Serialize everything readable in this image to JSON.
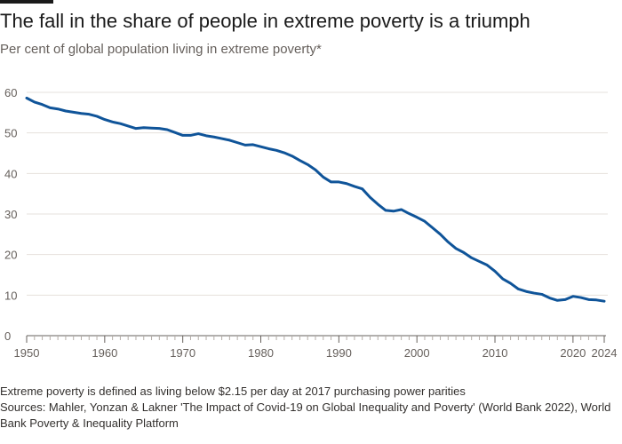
{
  "header": {
    "title": "The fall in the share of people in extreme poverty is a triumph",
    "subtitle": "Per cent of global population living in extreme poverty*"
  },
  "footer": {
    "note": "Extreme poverty is defined as living below $2.15 per day at 2017 purchasing power parities",
    "sources": "Sources: Mahler, Yonzan & Lakner 'The Impact of Covid-19 on Global Inequality and Poverty' (World Bank 2022), World Bank Poverty & Inequality Platform"
  },
  "colors": {
    "line": "#0f5499",
    "grid": "#e6e1dc",
    "axis": "#66605c",
    "text": "#33302e"
  },
  "chart_data": {
    "type": "line",
    "title": "The fall in the share of people in extreme poverty is a triumph",
    "subtitle": "Per cent of global population living in extreme poverty*",
    "xlabel": "",
    "ylabel": "",
    "xlim": [
      1950,
      2024
    ],
    "ylim": [
      0,
      60
    ],
    "yticks": [
      0,
      10,
      20,
      30,
      40,
      50,
      60
    ],
    "xticks": [
      1950,
      1960,
      1970,
      1980,
      1990,
      2000,
      2010,
      2020,
      2024
    ],
    "grid": true,
    "legend": "none",
    "series": [
      {
        "x": [
          1950,
          1951,
          1952,
          1953,
          1954,
          1955,
          1956,
          1957,
          1958,
          1959,
          1960,
          1961,
          1962,
          1963,
          1964,
          1965,
          1966,
          1967,
          1968,
          1969,
          1970,
          1971,
          1972,
          1973,
          1974,
          1975,
          1976,
          1977,
          1978,
          1979,
          1980,
          1981,
          1982,
          1983,
          1984,
          1985,
          1986,
          1987,
          1988,
          1989,
          1990,
          1991,
          1992,
          1993,
          1994,
          1995,
          1996,
          1997,
          1998,
          1999,
          2000,
          2001,
          2002,
          2003,
          2004,
          2005,
          2006,
          2007,
          2008,
          2009,
          2010,
          2011,
          2012,
          2013,
          2014,
          2015,
          2016,
          2017,
          2018,
          2019,
          2020,
          2021,
          2022,
          2023,
          2024
        ],
        "y": [
          58.6,
          57.6,
          57.0,
          56.2,
          55.9,
          55.4,
          55.1,
          54.8,
          54.6,
          54.1,
          53.3,
          52.7,
          52.3,
          51.7,
          51.1,
          51.3,
          51.2,
          51.1,
          50.8,
          50.1,
          49.4,
          49.4,
          49.8,
          49.3,
          49.0,
          48.6,
          48.2,
          47.6,
          47.0,
          47.1,
          46.6,
          46.1,
          45.7,
          45.1,
          44.3,
          43.2,
          42.2,
          40.9,
          39.1,
          37.9,
          37.9,
          37.5,
          36.8,
          36.2,
          34.1,
          32.4,
          30.9,
          30.7,
          31.1,
          30.1,
          29.2,
          28.2,
          26.6,
          25.0,
          23.1,
          21.5,
          20.5,
          19.2,
          18.3,
          17.4,
          15.9,
          14.0,
          12.9,
          11.5,
          10.9,
          10.5,
          10.2,
          9.3,
          8.7,
          8.9,
          9.7,
          9.4,
          8.9,
          8.8,
          8.5
        ]
      }
    ]
  }
}
